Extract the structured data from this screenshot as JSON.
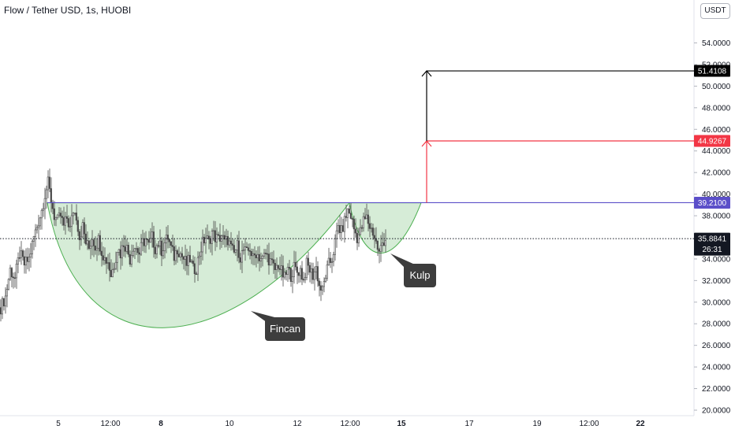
{
  "header": {
    "symbol_title": "Flow / Tether USD, 1s, HUOBI",
    "unit_button": "USDT"
  },
  "colors": {
    "candle": "#4a4a4a",
    "purple_line": "#5b4fc9",
    "red_line": "#f23645",
    "black_line": "#000000",
    "cup_fill": "#c8e6c9",
    "cup_stroke": "#4caf50",
    "callout_bg": "#3d3d3d"
  },
  "chart_data": {
    "type": "candlestick",
    "title": "Flow / Tether USD, 1s, HUOBI",
    "ylim": [
      19.3,
      55.2
    ],
    "y_ticks": [
      20,
      22,
      24,
      26,
      28,
      30,
      32,
      34,
      36,
      38,
      40,
      42,
      44,
      46,
      48,
      50,
      52,
      54
    ],
    "y_tick_labels": [
      "20.0000",
      "22.0000",
      "24.0000",
      "26.0000",
      "28.0000",
      "30.0000",
      "32.0000",
      "34.0000",
      "36.0000",
      "38.0000",
      "40.0000",
      "42.0000",
      "44.0000",
      "46.0000",
      "48.0000",
      "50.0000",
      "52.0000",
      "54.0000"
    ],
    "x_tick_labels": [
      "5",
      "12:00",
      "8",
      "10",
      "12",
      "12:00",
      "15",
      "17",
      "19",
      "12:00",
      "22"
    ],
    "x_tick_bold": [
      false,
      false,
      true,
      false,
      false,
      false,
      true,
      false,
      false,
      false,
      true
    ],
    "horizontal_levels": [
      {
        "label": "39.2100",
        "value": 39.21,
        "role": "neckline"
      },
      {
        "label": "44.9267",
        "value": 44.9267,
        "role": "target-1"
      },
      {
        "label": "51.4108",
        "value": 51.4108,
        "role": "target-2"
      }
    ],
    "current_price": {
      "label": "35.8841",
      "value": 35.8841,
      "countdown": "26:31"
    },
    "annotations": [
      "Fincan",
      "Kulp"
    ],
    "cup": {
      "rim": 39.2,
      "bottom": 27.2
    },
    "handle": {
      "rim": 39.2,
      "bottom": 33.9
    },
    "price_path": [
      [
        0,
        29.5
      ],
      [
        6,
        30.5
      ],
      [
        12,
        33.0
      ],
      [
        18,
        32.2
      ],
      [
        24,
        34.5
      ],
      [
        30,
        33.5
      ],
      [
        36,
        34.0
      ],
      [
        42,
        36.0
      ],
      [
        48,
        37.5
      ],
      [
        52,
        38.5
      ],
      [
        56,
        40.0
      ],
      [
        60,
        41.0
      ],
      [
        64,
        39.5
      ],
      [
        68,
        38.0
      ],
      [
        72,
        37.5
      ],
      [
        76,
        38.0
      ],
      [
        80,
        37.0
      ],
      [
        84,
        37.8
      ],
      [
        88,
        36.8
      ],
      [
        92,
        38.5
      ],
      [
        96,
        38.0
      ],
      [
        100,
        36.0
      ],
      [
        104,
        37.0
      ],
      [
        108,
        35.5
      ],
      [
        112,
        35.0
      ],
      [
        116,
        36.0
      ],
      [
        120,
        35.2
      ],
      [
        124,
        35.8
      ],
      [
        128,
        34.8
      ],
      [
        132,
        34.0
      ],
      [
        136,
        33.8
      ],
      [
        140,
        32.5
      ],
      [
        144,
        33.5
      ],
      [
        148,
        35.0
      ],
      [
        152,
        34.5
      ],
      [
        156,
        35.5
      ],
      [
        160,
        35.0
      ],
      [
        164,
        34.0
      ],
      [
        168,
        35.2
      ],
      [
        172,
        35.0
      ],
      [
        176,
        34.5
      ],
      [
        180,
        35.5
      ],
      [
        184,
        35.8
      ],
      [
        188,
        35.2
      ],
      [
        192,
        36.0
      ],
      [
        196,
        35.0
      ],
      [
        200,
        35.5
      ],
      [
        204,
        34.8
      ],
      [
        208,
        35.5
      ],
      [
        212,
        36.0
      ],
      [
        216,
        35.0
      ],
      [
        220,
        34.2
      ],
      [
        224,
        35.0
      ],
      [
        228,
        34.5
      ],
      [
        232,
        34.0
      ],
      [
        236,
        33.5
      ],
      [
        240,
        34.0
      ],
      [
        244,
        33.0
      ],
      [
        248,
        33.2
      ],
      [
        252,
        34.5
      ],
      [
        256,
        35.5
      ],
      [
        260,
        36.0
      ],
      [
        264,
        35.5
      ],
      [
        268,
        36.5
      ],
      [
        272,
        36.0
      ],
      [
        276,
        35.8
      ],
      [
        280,
        36.2
      ],
      [
        284,
        35.5
      ],
      [
        288,
        35.8
      ],
      [
        292,
        35.0
      ],
      [
        296,
        34.5
      ],
      [
        300,
        35.2
      ],
      [
        304,
        34.2
      ],
      [
        308,
        34.8
      ],
      [
        312,
        34.5
      ],
      [
        316,
        35.0
      ],
      [
        320,
        34.0
      ],
      [
        324,
        34.6
      ],
      [
        328,
        34.2
      ],
      [
        332,
        34.0
      ],
      [
        336,
        34.5
      ],
      [
        340,
        34.0
      ],
      [
        344,
        33.5
      ],
      [
        348,
        33.0
      ],
      [
        352,
        33.5
      ],
      [
        356,
        32.8
      ],
      [
        360,
        32.2
      ],
      [
        364,
        33.0
      ],
      [
        368,
        32.5
      ],
      [
        372,
        33.2
      ],
      [
        376,
        32.8
      ],
      [
        380,
        33.0
      ],
      [
        384,
        32.0
      ],
      [
        388,
        33.5
      ],
      [
        392,
        33.0
      ],
      [
        396,
        32.5
      ],
      [
        400,
        33.2
      ],
      [
        404,
        31.5
      ],
      [
        408,
        31.0
      ],
      [
        412,
        32.5
      ],
      [
        416,
        33.5
      ],
      [
        420,
        34.0
      ],
      [
        424,
        35.5
      ],
      [
        428,
        37.0
      ],
      [
        432,
        36.5
      ],
      [
        436,
        37.5
      ],
      [
        440,
        38.5
      ],
      [
        444,
        38.0
      ],
      [
        448,
        36.8
      ],
      [
        452,
        36.0
      ],
      [
        456,
        36.5
      ],
      [
        460,
        37.5
      ],
      [
        464,
        37.8
      ],
      [
        468,
        37.0
      ],
      [
        472,
        36.5
      ],
      [
        476,
        35.5
      ],
      [
        480,
        34.5
      ],
      [
        484,
        35.5
      ],
      [
        488,
        35.9
      ]
    ]
  }
}
